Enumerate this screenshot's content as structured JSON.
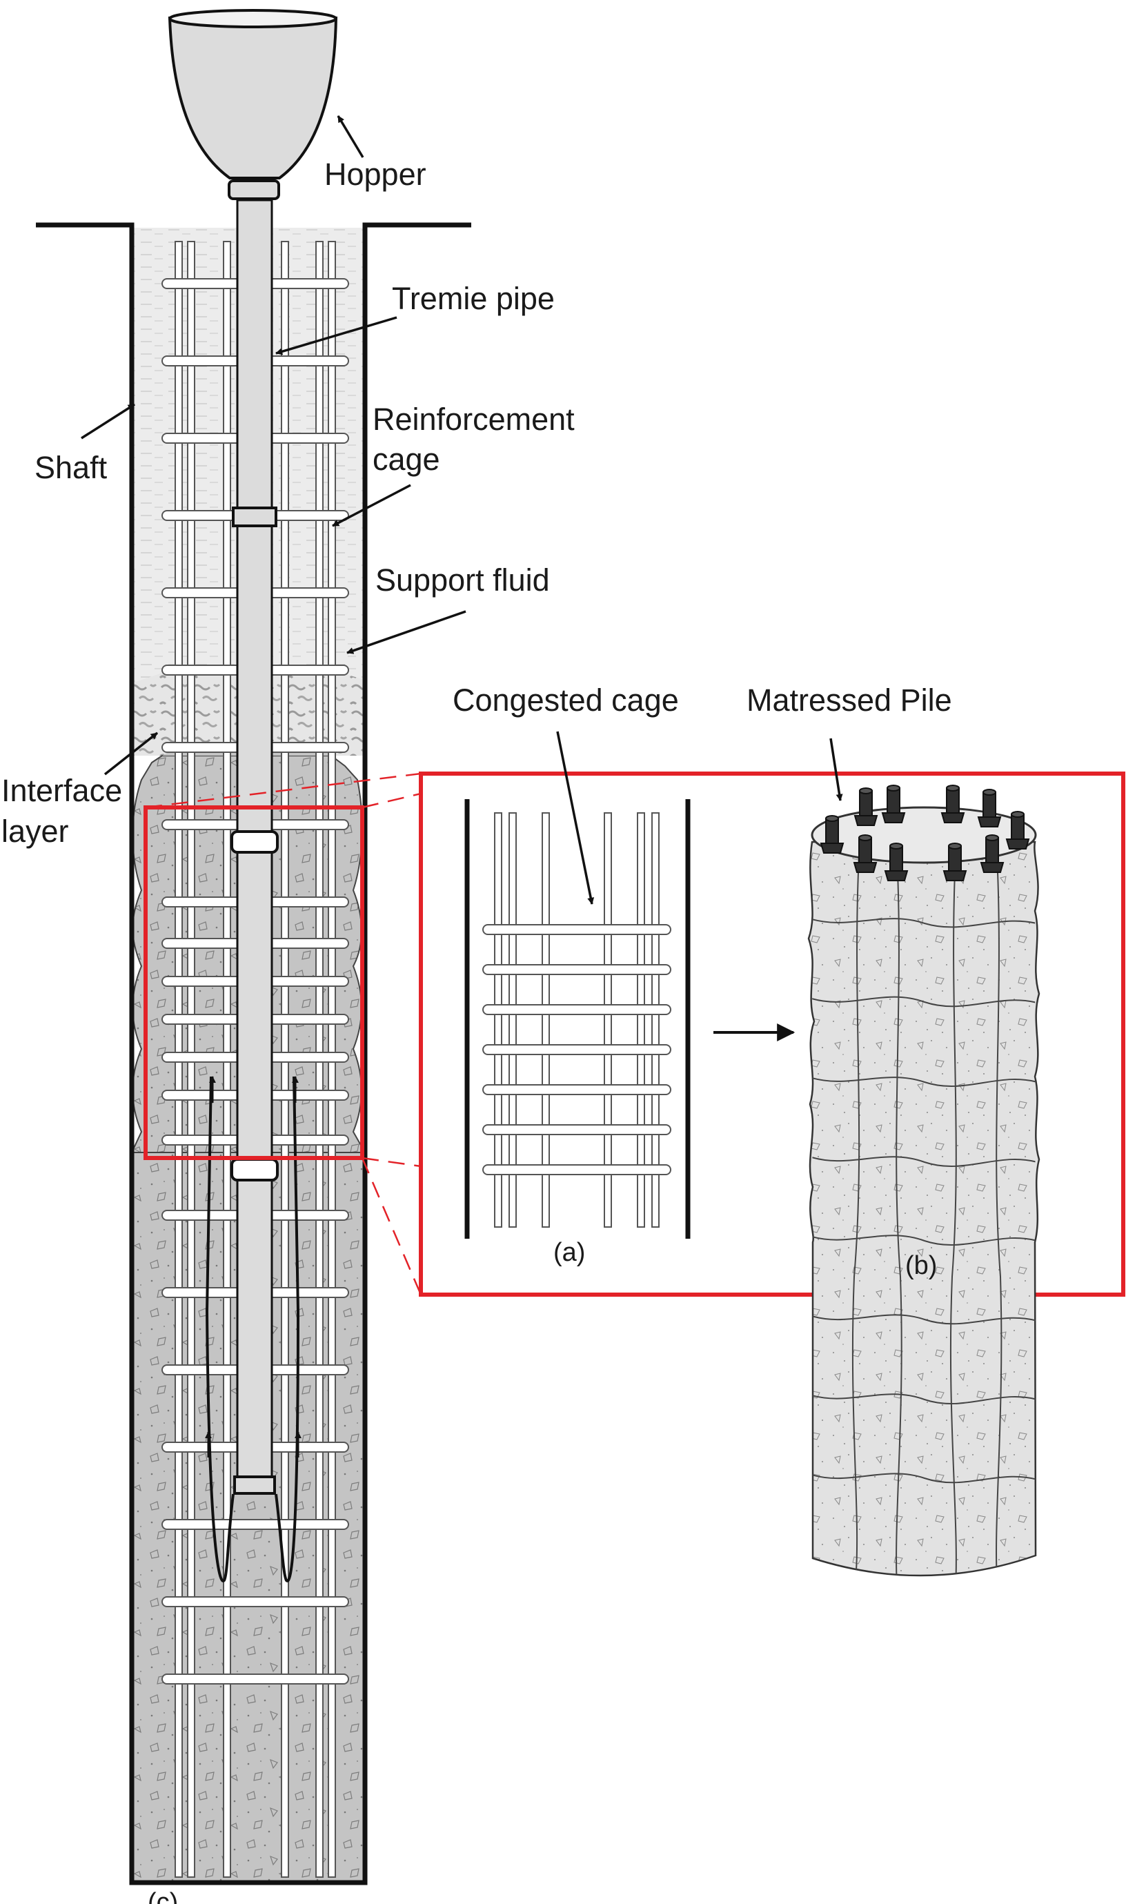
{
  "labels": {
    "hopper": "Hopper",
    "tremie_pipe": "Tremie pipe",
    "reinforcement_cage_1": "Reinforcement",
    "reinforcement_cage_2": "cage",
    "shaft": "Shaft",
    "support_fluid": "Support fluid",
    "interface_layer_1": "Interface",
    "interface_layer_2": "layer",
    "congested_cage": "Congested cage",
    "matressed_pile": "Matressed Pile",
    "panel_a": "(a)",
    "panel_b": "(b)",
    "panel_c": "(c)"
  },
  "colors": {
    "highlight_red": "#e32228",
    "concrete_gray": "#c4c4c4",
    "fluid_gray": "#ececec",
    "pipe_gray": "#dcdcdc",
    "pile_gray": "#e2e2e2",
    "ink": "#111111"
  },
  "icons": {
    "dowel": "dowel-icon",
    "arrow": "arrow-icon"
  }
}
